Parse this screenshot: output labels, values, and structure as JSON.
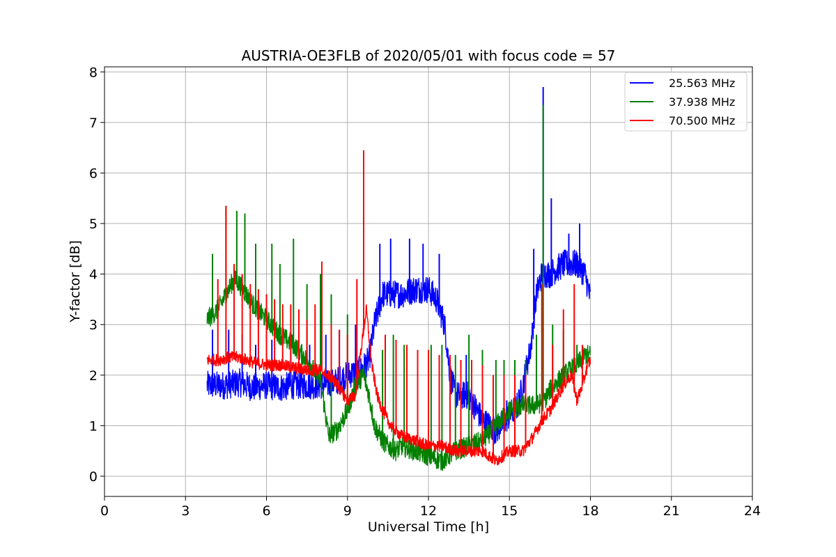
{
  "chart_data": {
    "type": "line",
    "title": "AUSTRIA-OE3FLB of 2020/05/01 with focus code = 57",
    "xlabel": "Universal Time [h]",
    "ylabel": "Y-factor [dB]",
    "xlim": [
      0,
      24
    ],
    "ylim": [
      -0.4,
      8.1
    ],
    "xticks": [
      "0",
      "3",
      "6",
      "9",
      "12",
      "15",
      "18",
      "21",
      "24"
    ],
    "yticks": [
      "0",
      "1",
      "2",
      "3",
      "4",
      "5",
      "6",
      "7",
      "8"
    ],
    "grid": true,
    "legend_position": "top-right",
    "series": [
      {
        "name": "25.563 MHz",
        "color": "#0000ff",
        "x": [
          3.8,
          4.5,
          5.0,
          5.5,
          6.0,
          6.5,
          7.0,
          7.5,
          8.0,
          8.5,
          9.0,
          9.5,
          9.8,
          10.0,
          10.3,
          10.5,
          11.0,
          11.5,
          12.0,
          12.3,
          12.6,
          12.8,
          13.0,
          13.5,
          14.0,
          14.5,
          15.0,
          15.3,
          15.5,
          15.8,
          16.0,
          16.2,
          16.5,
          17.0,
          17.3,
          17.5,
          17.8,
          18.0
        ],
        "y": [
          1.8,
          1.8,
          1.85,
          1.75,
          1.8,
          1.75,
          1.8,
          1.8,
          1.8,
          1.85,
          2.0,
          2.1,
          2.3,
          3.0,
          3.6,
          3.6,
          3.6,
          3.7,
          3.7,
          3.5,
          3.0,
          2.0,
          1.6,
          1.6,
          1.1,
          0.9,
          1.2,
          1.4,
          1.8,
          2.6,
          3.6,
          4.0,
          4.0,
          4.2,
          4.2,
          4.2,
          4.0,
          3.5
        ]
      },
      {
        "name": "37.938 MHz",
        "color": "#008000",
        "x": [
          3.8,
          4.2,
          4.5,
          4.8,
          5.0,
          5.5,
          6.0,
          6.5,
          7.0,
          7.5,
          8.0,
          8.3,
          8.6,
          9.0,
          9.3,
          9.6,
          9.8,
          10.0,
          10.3,
          10.5,
          10.8,
          11.0,
          11.5,
          12.0,
          12.5,
          13.0,
          13.5,
          14.0,
          14.5,
          15.0,
          15.5,
          16.0,
          16.3,
          16.5,
          17.0,
          17.5,
          17.8,
          18.0
        ],
        "y": [
          3.1,
          3.3,
          3.6,
          3.9,
          3.8,
          3.4,
          3.1,
          2.8,
          2.6,
          2.3,
          1.9,
          0.8,
          0.9,
          1.3,
          1.8,
          2.0,
          1.6,
          1.0,
          0.7,
          0.6,
          0.5,
          0.6,
          0.5,
          0.4,
          0.3,
          0.5,
          0.6,
          0.7,
          1.0,
          1.3,
          1.4,
          1.4,
          1.5,
          1.7,
          2.0,
          2.2,
          2.4,
          2.4
        ]
      },
      {
        "name": "70.500 MHz",
        "color": "#ff0000",
        "x": [
          3.8,
          4.2,
          4.6,
          5.0,
          5.5,
          6.0,
          6.5,
          7.0,
          7.5,
          8.0,
          8.5,
          9.0,
          9.3,
          9.5,
          9.7,
          9.9,
          10.1,
          10.3,
          10.6,
          11.0,
          11.5,
          12.0,
          12.5,
          13.0,
          13.5,
          14.0,
          14.5,
          15.0,
          15.5,
          15.9,
          16.2,
          16.5,
          17.0,
          17.3,
          17.5,
          17.7,
          17.9,
          18.0
        ],
        "y": [
          2.3,
          2.3,
          2.35,
          2.35,
          2.25,
          2.2,
          2.2,
          2.15,
          2.1,
          2.1,
          1.9,
          1.5,
          1.6,
          2.5,
          3.3,
          2.2,
          1.6,
          1.3,
          1.0,
          0.8,
          0.7,
          0.6,
          0.6,
          0.5,
          0.5,
          0.5,
          0.3,
          0.5,
          0.5,
          0.8,
          1.1,
          1.3,
          1.8,
          2.0,
          1.5,
          1.8,
          2.2,
          2.3
        ]
      }
    ],
    "spikes": [
      {
        "series": 0,
        "x": [
          4.0,
          4.6,
          5.1,
          5.6,
          6.2,
          6.9,
          7.6,
          8.2,
          8.7,
          9.3,
          10.2,
          10.6,
          11.3,
          11.8,
          12.4,
          13.4,
          14.0,
          14.9,
          15.9,
          16.25,
          16.55,
          17.2,
          17.6
        ],
        "y": [
          2.9,
          2.9,
          2.8,
          2.6,
          2.7,
          2.6,
          2.6,
          2.8,
          2.9,
          3.0,
          4.6,
          4.7,
          4.7,
          4.6,
          4.4,
          2.4,
          1.9,
          1.5,
          4.5,
          7.7,
          5.5,
          4.8,
          5.0
        ]
      },
      {
        "series": 1,
        "x": [
          4.0,
          4.5,
          4.9,
          5.2,
          5.6,
          6.2,
          6.5,
          7.0,
          7.5,
          8.0,
          8.4,
          9.0,
          9.6,
          10.3,
          10.7,
          11.1,
          11.6,
          12.1,
          12.5,
          13.0,
          13.5,
          14.0,
          14.5,
          14.8,
          15.2,
          15.6,
          16.0,
          16.25,
          16.6,
          17.0,
          17.5
        ],
        "y": [
          4.4,
          5.35,
          5.25,
          5.2,
          4.6,
          4.6,
          4.2,
          4.7,
          3.8,
          4.0,
          3.6,
          3.2,
          2.2,
          2.5,
          2.8,
          2.6,
          2.5,
          2.6,
          2.6,
          2.4,
          2.8,
          2.5,
          2.3,
          2.3,
          2.3,
          2.3,
          2.8,
          7.35,
          3.0,
          2.9,
          2.6
        ]
      },
      {
        "series": 2,
        "x": [
          4.2,
          4.5,
          4.8,
          5.1,
          5.4,
          5.7,
          6.0,
          6.3,
          6.6,
          6.9,
          7.2,
          7.5,
          7.8,
          8.05,
          8.4,
          8.7,
          9.0,
          9.35,
          9.6,
          10.4,
          10.8,
          11.2,
          11.6,
          12.0,
          12.4,
          12.8,
          13.2,
          13.6,
          14.0,
          14.4,
          14.8,
          15.2,
          15.6,
          16.2,
          16.6,
          17.0,
          17.4,
          17.7
        ],
        "y": [
          3.9,
          5.35,
          4.2,
          4.0,
          3.8,
          3.7,
          3.6,
          3.5,
          3.4,
          3.4,
          3.3,
          3.1,
          3.4,
          4.25,
          3.0,
          2.9,
          2.8,
          3.9,
          6.45,
          2.8,
          2.7,
          2.6,
          2.5,
          2.5,
          2.4,
          2.4,
          2.3,
          2.3,
          2.2,
          2.0,
          2.0,
          2.0,
          2.0,
          3.8,
          2.6,
          3.3,
          3.8,
          2.6
        ]
      }
    ]
  }
}
